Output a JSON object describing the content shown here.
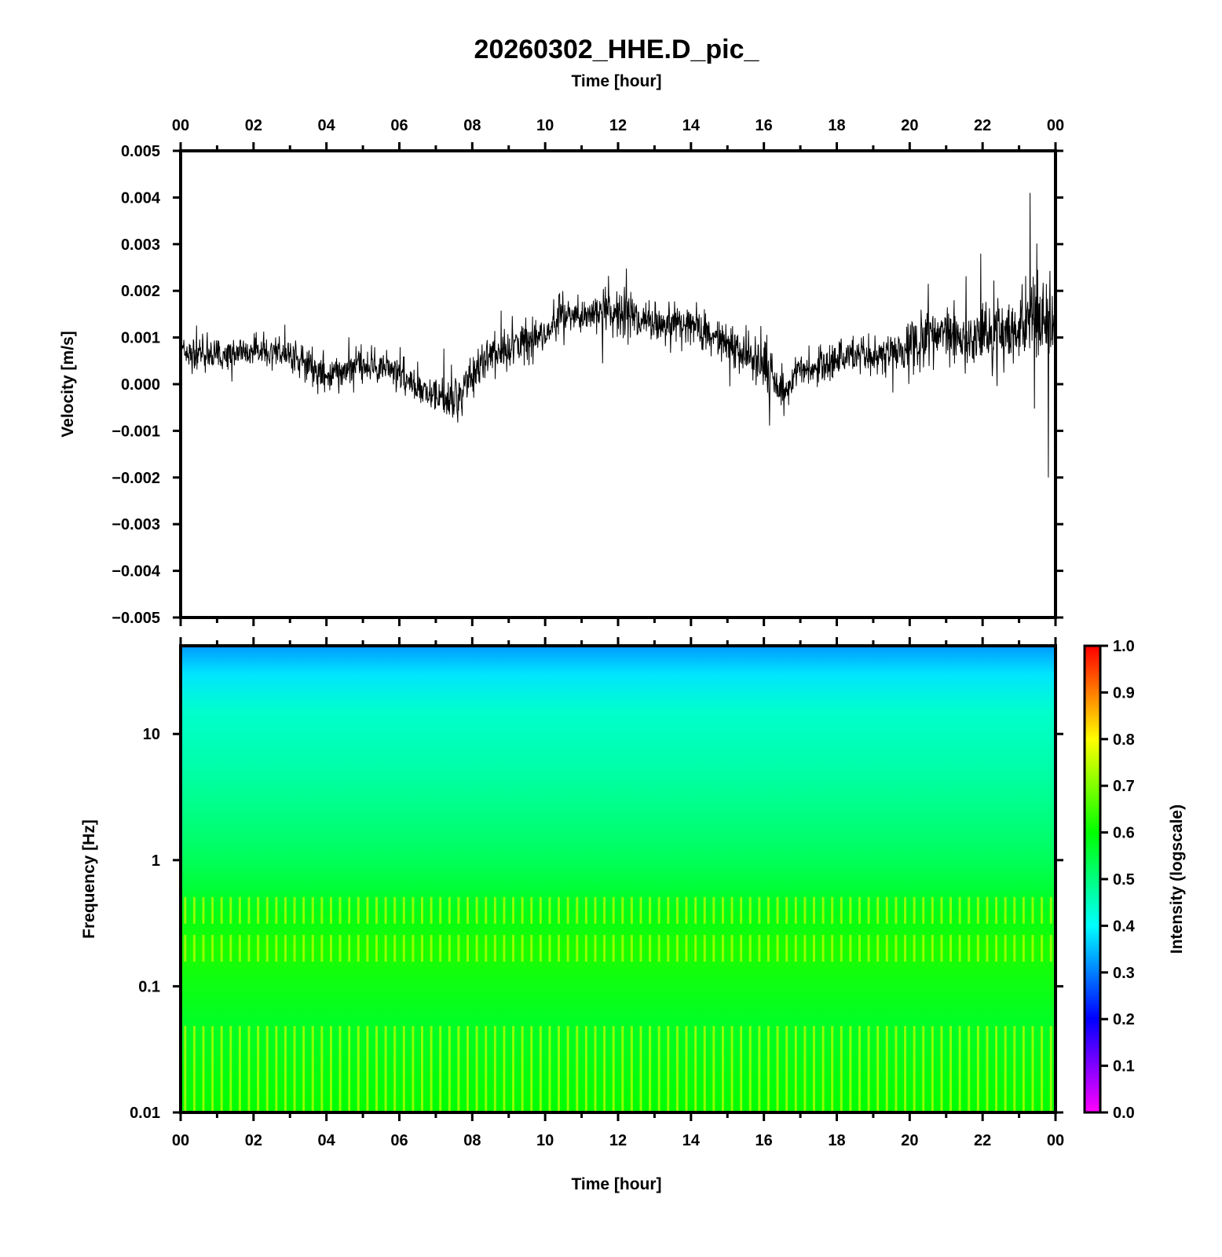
{
  "title": "20260302_HHE.D_pic_",
  "top_axis_label": "Time [hour]",
  "bottom_axis_label": "Time [hour]",
  "colors": {
    "trace": "#000000",
    "frame": "#000000",
    "background": "#ffffff"
  },
  "chart_data": [
    {
      "type": "line",
      "title": "20260302_HHE.D_pic_",
      "xlabel": "Time [hour]",
      "ylabel": "Velocity [m/s]",
      "x_ticks": [
        "00",
        "02",
        "04",
        "06",
        "08",
        "10",
        "12",
        "14",
        "16",
        "18",
        "20",
        "22",
        "00"
      ],
      "xlim": [
        0,
        24
      ],
      "ylim": [
        -0.005,
        0.005
      ],
      "y_ticks": [
        "0.005",
        "0.004",
        "0.003",
        "0.002",
        "0.001",
        "0.000",
        "−0.001",
        "−0.002",
        "−0.003",
        "−0.004",
        "−0.005"
      ],
      "grid": false,
      "series": [
        {
          "x": [
            0,
            0.5,
            1,
            1.5,
            2,
            2.5,
            3,
            3.5,
            4,
            4.5,
            5,
            5.5,
            6,
            6.5,
            7,
            7.5,
            8,
            8.5,
            9,
            9.5,
            10,
            10.5,
            11,
            11.5,
            12,
            12.5,
            13,
            13.5,
            14,
            14.5,
            15,
            15.5,
            16,
            16.5,
            17,
            17.5,
            18,
            18.5,
            19,
            19.5,
            20,
            20.5,
            21,
            21.5,
            22,
            22.5,
            23,
            23.5,
            24
          ],
          "y": [
            0.0007,
            0.0006,
            0.0006,
            0.0007,
            0.0006,
            0.0007,
            0.0006,
            0.0004,
            0.0002,
            0.0003,
            0.0004,
            0.0004,
            0.0002,
            -0.0001,
            -0.0002,
            -0.0004,
            0.0002,
            0.0006,
            0.0008,
            0.0009,
            0.0011,
            0.0015,
            0.0014,
            0.0016,
            0.0015,
            0.0014,
            0.0013,
            0.0014,
            0.0013,
            0.0011,
            0.0009,
            0.0006,
            0.0004,
            -0.0002,
            0.0003,
            0.0004,
            0.0005,
            0.0006,
            0.0006,
            0.0007,
            0.0008,
            0.001,
            0.0011,
            0.001,
            0.001,
            0.0011,
            0.0012,
            0.0013,
            0.0014
          ],
          "spread": [
            0.0005,
            0.0005,
            0.0005,
            0.0005,
            0.0005,
            0.0005,
            0.0005,
            0.0005,
            0.0006,
            0.0005,
            0.0005,
            0.0005,
            0.0005,
            0.0005,
            0.0005,
            0.0006,
            0.0007,
            0.0007,
            0.0007,
            0.0006,
            0.0006,
            0.0006,
            0.0006,
            0.0006,
            0.0007,
            0.0007,
            0.0006,
            0.0006,
            0.0006,
            0.0006,
            0.0006,
            0.0006,
            0.0007,
            0.0006,
            0.0006,
            0.0006,
            0.0006,
            0.0006,
            0.0006,
            0.0007,
            0.0008,
            0.0008,
            0.0009,
            0.001,
            0.0011,
            0.0012,
            0.0013,
            0.0013,
            0.0014
          ]
        }
      ],
      "peak": {
        "x": 23.3,
        "y": 0.0041
      },
      "trough": {
        "x": 23.8,
        "y": -0.002
      }
    },
    {
      "type": "heatmap",
      "xlabel": "Time [hour]",
      "ylabel": "Frequency [Hz]",
      "x_ticks": [
        "00",
        "02",
        "04",
        "06",
        "08",
        "10",
        "12",
        "14",
        "16",
        "18",
        "20",
        "22",
        "00"
      ],
      "xlim": [
        0,
        24
      ],
      "y_scale": "log",
      "ylim": [
        0.01,
        50
      ],
      "y_ticks": [
        "10",
        "1",
        "0.1",
        "0.01"
      ],
      "colorbar": {
        "label": "Intensity (logscale)",
        "ticks": [
          "1.0",
          "0.9",
          "0.8",
          "0.7",
          "0.6",
          "0.5",
          "0.4",
          "0.3",
          "0.2",
          "0.1",
          "0.0"
        ],
        "range": [
          0,
          1
        ],
        "colormap": [
          "#ff00ff",
          "#0000ff",
          "#00ffff",
          "#00ff00",
          "#ffff00",
          "#ff0000"
        ]
      },
      "intensity_profile": [
        {
          "freq": 50,
          "intensity": 0.32
        },
        {
          "freq": 30,
          "intensity": 0.38
        },
        {
          "freq": 15,
          "intensity": 0.44
        },
        {
          "freq": 5,
          "intensity": 0.47
        },
        {
          "freq": 1,
          "intensity": 0.53
        },
        {
          "freq": 0.4,
          "intensity": 0.58
        },
        {
          "freq": 0.2,
          "intensity": 0.62
        },
        {
          "freq": 0.05,
          "intensity": 0.57
        },
        {
          "freq": 0.01,
          "intensity": 0.6
        }
      ],
      "band_stripes": [
        0.4,
        0.2,
        0.013
      ]
    }
  ]
}
